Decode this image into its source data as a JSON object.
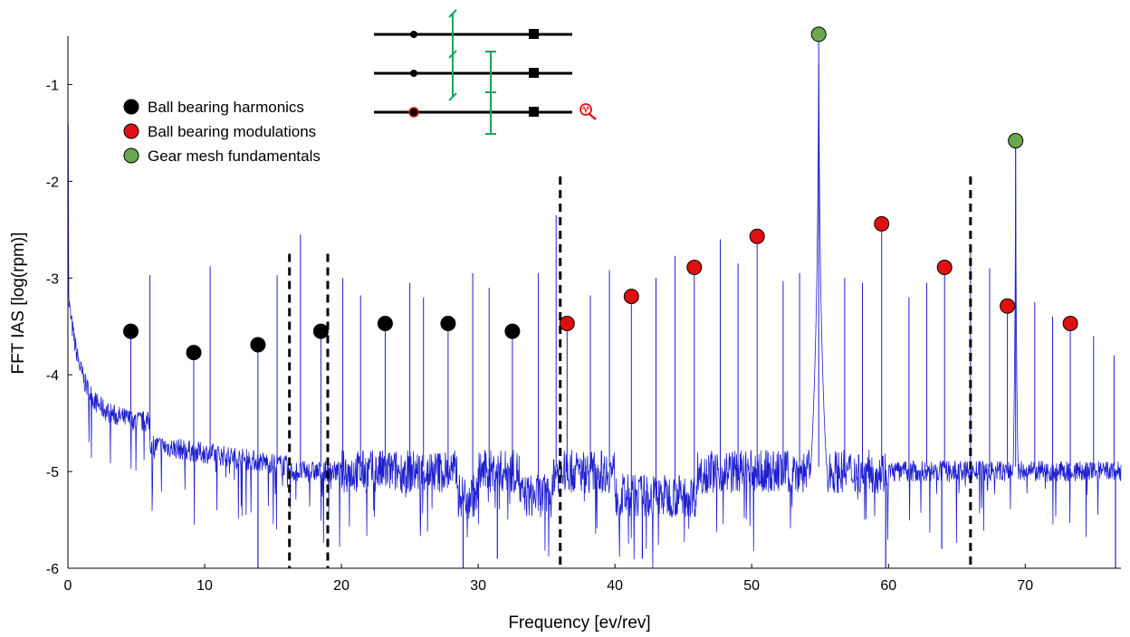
{
  "chart_data": {
    "type": "line",
    "title": "",
    "xlabel": "Frequency [ev/rev]",
    "ylabel": "FFT IAS [log(rpm)]",
    "xlim": [
      0,
      77
    ],
    "ylim": [
      -6,
      -0.5
    ],
    "x_ticks": [
      0,
      10,
      20,
      30,
      40,
      50,
      60,
      70
    ],
    "y_ticks": [
      -6,
      -5,
      -4,
      -3,
      -2,
      -1
    ],
    "grid": false,
    "legend_position": "top-left",
    "colors": {
      "spectrum": "#1f1fd0",
      "harmonics": "#000000",
      "modulations": "#e01010",
      "gear": "#6aa84f",
      "shaft": "#000000",
      "gear_symbol": "#1aa35a",
      "dashed": "#000000"
    },
    "series": [
      {
        "name": "Ball bearing harmonics",
        "marker_color": "#000000",
        "points": [
          [
            4.6,
            -3.55
          ],
          [
            9.2,
            -3.77
          ],
          [
            13.9,
            -3.69
          ],
          [
            18.5,
            -3.55
          ],
          [
            23.2,
            -3.47
          ],
          [
            27.8,
            -3.47
          ],
          [
            32.5,
            -3.55
          ]
        ]
      },
      {
        "name": "Ball bearing modulations",
        "marker_color": "#e01010",
        "points": [
          [
            36.5,
            -3.47
          ],
          [
            41.2,
            -3.19
          ],
          [
            45.8,
            -2.89
          ],
          [
            50.4,
            -2.57
          ],
          [
            59.5,
            -2.44
          ],
          [
            64.1,
            -2.89
          ],
          [
            68.7,
            -3.29
          ],
          [
            73.3,
            -3.47
          ]
        ]
      },
      {
        "name": "Gear mesh fundamentals",
        "marker_color": "#6aa84f",
        "points": [
          [
            54.9,
            -0.48
          ],
          [
            69.3,
            -1.58
          ]
        ]
      }
    ],
    "spectrum": {
      "peaks": [
        [
          4.6,
          -3.62
        ],
        [
          6.0,
          -2.97
        ],
        [
          9.2,
          -3.85
        ],
        [
          10.4,
          -2.88
        ],
        [
          13.9,
          -3.77
        ],
        [
          15.3,
          -2.97
        ],
        [
          17.0,
          -2.55
        ],
        [
          18.5,
          -3.63
        ],
        [
          20.1,
          -3.0
        ],
        [
          21.4,
          -3.18
        ],
        [
          23.2,
          -3.55
        ],
        [
          25.0,
          -3.05
        ],
        [
          26.0,
          -3.2
        ],
        [
          27.8,
          -3.55
        ],
        [
          29.6,
          -2.95
        ],
        [
          30.8,
          -3.1
        ],
        [
          32.5,
          -3.63
        ],
        [
          34.4,
          -2.95
        ],
        [
          35.7,
          -2.35
        ],
        [
          36.5,
          -3.55
        ],
        [
          38.2,
          -3.18
        ],
        [
          39.6,
          -2.92
        ],
        [
          41.2,
          -3.27
        ],
        [
          43.0,
          -3.0
        ],
        [
          44.4,
          -2.77
        ],
        [
          45.8,
          -2.97
        ],
        [
          47.7,
          -2.6
        ],
        [
          49.0,
          -2.85
        ],
        [
          50.4,
          -2.65
        ],
        [
          52.3,
          -3.03
        ],
        [
          53.5,
          -2.95
        ],
        [
          54.9,
          -0.52
        ],
        [
          56.8,
          -3.0
        ],
        [
          58.1,
          -3.05
        ],
        [
          59.5,
          -2.52
        ],
        [
          61.5,
          -3.2
        ],
        [
          62.8,
          -3.05
        ],
        [
          64.1,
          -2.97
        ],
        [
          66.0,
          -2.7
        ],
        [
          67.4,
          -2.9
        ],
        [
          68.7,
          -3.37
        ],
        [
          69.3,
          -1.62
        ],
        [
          70.7,
          -3.25
        ],
        [
          72.0,
          -3.4
        ],
        [
          73.3,
          -3.55
        ],
        [
          75.0,
          -3.6
        ],
        [
          76.5,
          -3.8
        ]
      ],
      "wide_peaks": [
        [
          54.9,
          -0.52,
          0.45
        ],
        [
          69.3,
          -1.62,
          0.3
        ],
        [
          0.0,
          -1.35,
          0.35
        ]
      ],
      "dips": [
        [
          13.9,
          -6.0
        ],
        [
          28.9,
          -6.0
        ],
        [
          31.4,
          -5.9
        ],
        [
          42.0,
          -5.9
        ],
        [
          59.8,
          -6.0
        ],
        [
          63.9,
          -5.8
        ],
        [
          76.6,
          -6.0
        ]
      ]
    },
    "dashed_lines": [
      {
        "x": 16.2,
        "y_top": -2.75
      },
      {
        "x": 19.0,
        "y_top": -2.75
      },
      {
        "x": 36.0,
        "y_top": -1.95
      },
      {
        "x": 66.0,
        "y_top": -1.95
      }
    ],
    "inset": {
      "description_marker": "gearbox schematic with three shafts",
      "icon": "magnifier-vibration-icon"
    }
  }
}
